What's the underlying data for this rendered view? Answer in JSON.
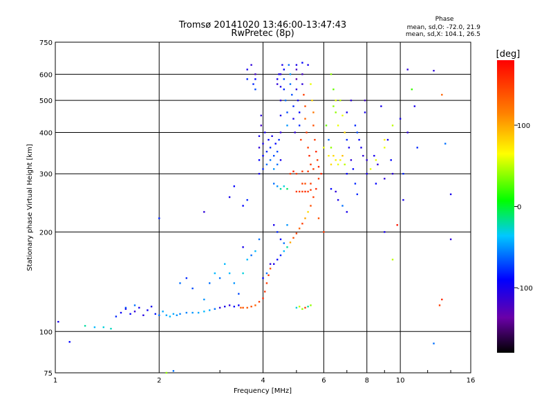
{
  "header": {
    "title_line1": "Tromsø 20141020 13:46:00-13:47:43",
    "title_line2": "RwPretec (8p)"
  },
  "phase_info": {
    "heading": "Phase",
    "line_o": "mean, sd,O: -72.0, 21.9",
    "line_x": "mean, sd,X: 104.1, 26.5"
  },
  "colorbar": {
    "label": "[deg]",
    "ticks": [
      {
        "value": 100,
        "label": "100"
      },
      {
        "value": 0,
        "label": "0"
      },
      {
        "value": -100,
        "label": "-100"
      }
    ],
    "range": [
      -180,
      180
    ],
    "colormap": "rainbow",
    "colors": [
      "#000000",
      "#8000b0",
      "#0000ff",
      "#00ffff",
      "#00ff00",
      "#ffff00",
      "#ff8000",
      "#ff0000"
    ]
  },
  "chart_data": {
    "type": "scatter",
    "xlabel": "Frequency [MHz]",
    "ylabel": "Stationary phase Virtual Height [km]",
    "xscale": "log",
    "yscale": "log",
    "xlim": [
      1,
      16
    ],
    "ylim": [
      75,
      750
    ],
    "grid": true,
    "xticks": [
      {
        "value": 1,
        "label": "1"
      },
      {
        "value": 2,
        "label": "2"
      },
      {
        "value": 4,
        "label": "4"
      },
      {
        "value": 6,
        "label": "6"
      },
      {
        "value": 8,
        "label": "8"
      },
      {
        "value": 10,
        "label": "10"
      },
      {
        "value": 16,
        "label": "16"
      }
    ],
    "yticks": [
      {
        "value": 75,
        "label": "75"
      },
      {
        "value": 100,
        "label": "100"
      },
      {
        "value": 200,
        "label": "200"
      },
      {
        "value": 300,
        "label": "300"
      },
      {
        "value": 400,
        "label": "400"
      },
      {
        "value": 500,
        "label": "500"
      },
      {
        "value": 600,
        "label": "600"
      },
      {
        "value": 750,
        "label": "750"
      }
    ],
    "points": [
      [
        1.02,
        107,
        -100
      ],
      [
        1.1,
        93,
        -90
      ],
      [
        1.22,
        104,
        -20
      ],
      [
        1.3,
        103,
        -40
      ],
      [
        1.38,
        103,
        -30
      ],
      [
        1.45,
        102,
        -25
      ],
      [
        1.5,
        111,
        -80
      ],
      [
        1.55,
        114,
        -95
      ],
      [
        1.6,
        117,
        -100
      ],
      [
        1.65,
        113,
        -90
      ],
      [
        1.7,
        115,
        -110
      ],
      [
        1.75,
        118,
        -100
      ],
      [
        1.8,
        112,
        -105
      ],
      [
        1.85,
        116,
        -95
      ],
      [
        1.9,
        119,
        -100
      ],
      [
        1.95,
        113,
        -85
      ],
      [
        2.0,
        112,
        -60
      ],
      [
        2.05,
        115,
        -45
      ],
      [
        2.1,
        112,
        -45
      ],
      [
        2.15,
        111,
        -40
      ],
      [
        2.2,
        113,
        -45
      ],
      [
        2.25,
        112,
        -50
      ],
      [
        2.3,
        113,
        -55
      ],
      [
        2.4,
        114,
        -55
      ],
      [
        2.5,
        114,
        -50
      ],
      [
        2.6,
        114,
        -45
      ],
      [
        2.7,
        115,
        -40
      ],
      [
        2.8,
        116,
        -45
      ],
      [
        2.9,
        117,
        -60
      ],
      [
        3.0,
        118,
        -110
      ],
      [
        3.1,
        119,
        -100
      ],
      [
        3.2,
        120,
        -110
      ],
      [
        3.3,
        119,
        -90
      ],
      [
        3.4,
        120,
        -95
      ],
      [
        3.45,
        118,
        130
      ],
      [
        3.5,
        118,
        140
      ],
      [
        3.6,
        118,
        135
      ],
      [
        3.7,
        119,
        140
      ],
      [
        3.8,
        120,
        130
      ],
      [
        3.9,
        123,
        150
      ],
      [
        4.0,
        126,
        160
      ],
      [
        4.05,
        132,
        155
      ],
      [
        4.1,
        140,
        150
      ],
      [
        4.15,
        148,
        150
      ],
      [
        4.2,
        155,
        140
      ],
      [
        4.3,
        160,
        -100
      ],
      [
        4.4,
        165,
        -90
      ],
      [
        4.5,
        170,
        -80
      ],
      [
        4.6,
        175,
        -40
      ],
      [
        4.7,
        180,
        -20
      ],
      [
        4.8,
        186,
        100
      ],
      [
        4.9,
        192,
        140
      ],
      [
        5.0,
        198,
        150
      ],
      [
        5.1,
        205,
        130
      ],
      [
        5.2,
        212,
        150
      ],
      [
        5.3,
        220,
        100
      ],
      [
        5.4,
        230,
        80
      ],
      [
        5.5,
        240,
        140
      ],
      [
        5.6,
        255,
        150
      ],
      [
        5.7,
        270,
        160
      ],
      [
        5.8,
        290,
        150
      ],
      [
        5.9,
        300,
        160
      ],
      [
        5.0,
        265,
        150
      ],
      [
        5.1,
        265,
        150
      ],
      [
        5.2,
        265,
        150
      ],
      [
        5.3,
        265,
        160
      ],
      [
        5.4,
        265,
        150
      ],
      [
        5.5,
        268,
        150
      ],
      [
        5.5,
        280,
        150
      ],
      [
        5.3,
        280,
        140
      ],
      [
        5.2,
        280,
        150
      ],
      [
        4.8,
        300,
        150
      ],
      [
        4.9,
        305,
        160
      ],
      [
        5.0,
        300,
        150
      ],
      [
        5.2,
        305,
        150
      ],
      [
        5.4,
        305,
        150
      ],
      [
        5.6,
        310,
        150
      ],
      [
        4.5,
        270,
        -20
      ],
      [
        4.6,
        275,
        -30
      ],
      [
        4.7,
        270,
        -10
      ],
      [
        4.4,
        275,
        -50
      ],
      [
        4.3,
        280,
        -60
      ],
      [
        3.9,
        300,
        -100
      ],
      [
        3.9,
        330,
        -90
      ],
      [
        3.9,
        360,
        -110
      ],
      [
        3.9,
        390,
        -100
      ],
      [
        3.95,
        420,
        -120
      ],
      [
        3.95,
        450,
        -110
      ],
      [
        4.0,
        310,
        -80
      ],
      [
        4.0,
        340,
        -90
      ],
      [
        4.0,
        370,
        -100
      ],
      [
        4.05,
        400,
        -100
      ],
      [
        4.1,
        320,
        -60
      ],
      [
        4.1,
        350,
        -80
      ],
      [
        4.15,
        380,
        -90
      ],
      [
        4.2,
        330,
        -60
      ],
      [
        4.2,
        360,
        -80
      ],
      [
        4.25,
        390,
        -100
      ],
      [
        4.3,
        310,
        -50
      ],
      [
        4.3,
        340,
        -70
      ],
      [
        4.35,
        370,
        -90
      ],
      [
        4.4,
        320,
        -60
      ],
      [
        4.4,
        350,
        -70
      ],
      [
        4.45,
        380,
        -80
      ],
      [
        4.5,
        330,
        -100
      ],
      [
        4.5,
        400,
        -110
      ],
      [
        4.5,
        450,
        -100
      ],
      [
        4.5,
        500,
        -110
      ],
      [
        4.5,
        550,
        -100
      ],
      [
        4.5,
        600,
        -110
      ],
      [
        4.55,
        640,
        -100
      ],
      [
        4.6,
        620,
        -90
      ],
      [
        4.6,
        580,
        -70
      ],
      [
        4.6,
        540,
        -80
      ],
      [
        4.65,
        500,
        -60
      ],
      [
        4.7,
        460,
        -70
      ],
      [
        4.7,
        420,
        -50
      ],
      [
        4.75,
        640,
        -60
      ],
      [
        4.8,
        600,
        -50
      ],
      [
        4.8,
        560,
        -60
      ],
      [
        4.85,
        520,
        -70
      ],
      [
        4.9,
        480,
        -80
      ],
      [
        4.9,
        440,
        -100
      ],
      [
        4.95,
        400,
        -110
      ],
      [
        5.0,
        620,
        -120
      ],
      [
        5.0,
        580,
        -130
      ],
      [
        5.0,
        540,
        -110
      ],
      [
        5.05,
        500,
        -100
      ],
      [
        5.1,
        460,
        -90
      ],
      [
        5.1,
        420,
        -80
      ],
      [
        5.15,
        380,
        150
      ],
      [
        5.2,
        600,
        -120
      ],
      [
        5.2,
        560,
        -110
      ],
      [
        5.25,
        520,
        150
      ],
      [
        5.3,
        480,
        140
      ],
      [
        5.3,
        440,
        130
      ],
      [
        5.35,
        400,
        150
      ],
      [
        5.4,
        360,
        150
      ],
      [
        5.45,
        340,
        160
      ],
      [
        5.5,
        320,
        150
      ],
      [
        5.5,
        560,
        60
      ],
      [
        5.55,
        500,
        80
      ],
      [
        5.6,
        460,
        120
      ],
      [
        5.6,
        420,
        140
      ],
      [
        5.65,
        380,
        150
      ],
      [
        5.7,
        350,
        160
      ],
      [
        5.75,
        330,
        150
      ],
      [
        5.8,
        315,
        160
      ],
      [
        5.4,
        640,
        -100
      ],
      [
        5.2,
        650,
        -90
      ],
      [
        5.0,
        640,
        -100
      ],
      [
        4.4,
        560,
        -110
      ],
      [
        4.4,
        580,
        -100
      ],
      [
        4.45,
        600,
        -100
      ],
      [
        3.7,
        640,
        -110
      ],
      [
        3.8,
        600,
        -120
      ],
      [
        3.8,
        580,
        -90
      ],
      [
        3.75,
        560,
        -80
      ],
      [
        3.8,
        540,
        -70
      ],
      [
        3.6,
        580,
        -80
      ],
      [
        3.6,
        620,
        -100
      ],
      [
        6.2,
        380,
        -60
      ],
      [
        6.3,
        360,
        40
      ],
      [
        6.4,
        340,
        80
      ],
      [
        6.5,
        330,
        70
      ],
      [
        6.6,
        320,
        60
      ],
      [
        6.7,
        330,
        70
      ],
      [
        6.8,
        340,
        90
      ],
      [
        6.9,
        320,
        50
      ],
      [
        6.5,
        460,
        40
      ],
      [
        6.6,
        420,
        60
      ],
      [
        6.4,
        480,
        40
      ],
      [
        6.7,
        500,
        50
      ],
      [
        6.8,
        450,
        60
      ],
      [
        6.9,
        400,
        80
      ],
      [
        7.0,
        380,
        -80
      ],
      [
        7.1,
        360,
        -100
      ],
      [
        7.2,
        330,
        -110
      ],
      [
        7.3,
        310,
        -90
      ],
      [
        7.0,
        460,
        -100
      ],
      [
        7.2,
        500,
        -110
      ],
      [
        7.4,
        420,
        -80
      ],
      [
        7.5,
        400,
        -70
      ],
      [
        7.6,
        380,
        -90
      ],
      [
        7.7,
        360,
        -100
      ],
      [
        7.8,
        340,
        -110
      ],
      [
        7.9,
        460,
        -100
      ],
      [
        7.9,
        500,
        -120
      ],
      [
        8.0,
        330,
        -110
      ],
      [
        8.2,
        310,
        60
      ],
      [
        8.4,
        340,
        -100
      ],
      [
        8.6,
        320,
        -110
      ],
      [
        8.8,
        480,
        -100
      ],
      [
        9.0,
        360,
        60
      ],
      [
        9.2,
        380,
        -100
      ],
      [
        9.4,
        330,
        -90
      ],
      [
        6.5,
        500,
        60
      ],
      [
        6.3,
        600,
        40
      ],
      [
        6.4,
        540,
        30
      ],
      [
        6.1,
        420,
        30
      ],
      [
        6.2,
        340,
        70
      ],
      [
        6.3,
        320,
        80
      ],
      [
        6.0,
        360,
        60
      ],
      [
        6.6,
        250,
        -100
      ],
      [
        6.8,
        240,
        -60
      ],
      [
        7.0,
        230,
        -100
      ],
      [
        7.5,
        260,
        -80
      ],
      [
        6.3,
        270,
        -90
      ],
      [
        6.5,
        265,
        -110
      ],
      [
        7.0,
        300,
        -90
      ],
      [
        7.4,
        280,
        -80
      ],
      [
        8.0,
        300,
        -100
      ],
      [
        8.5,
        280,
        -90
      ],
      [
        9.0,
        290,
        -110
      ],
      [
        9.5,
        300,
        -110
      ],
      [
        9.0,
        380,
        70
      ],
      [
        9.5,
        420,
        50
      ],
      [
        10.0,
        440,
        -100
      ],
      [
        10.5,
        620,
        -110
      ],
      [
        10.8,
        540,
        20
      ],
      [
        11.0,
        480,
        -100
      ],
      [
        11.2,
        360,
        -80
      ],
      [
        12.5,
        615,
        -110
      ],
      [
        13.2,
        520,
        130
      ],
      [
        13.5,
        370,
        -60
      ],
      [
        14.0,
        260,
        -100
      ],
      [
        14.0,
        190,
        -110
      ],
      [
        13.0,
        120,
        150
      ],
      [
        13.2,
        125,
        160
      ],
      [
        12.5,
        92,
        -60
      ],
      [
        10.5,
        400,
        -110
      ],
      [
        10.2,
        250,
        -100
      ],
      [
        9.8,
        210,
        170
      ],
      [
        9.5,
        165,
        50
      ],
      [
        10.2,
        300,
        -80
      ],
      [
        9.0,
        200,
        -100
      ],
      [
        8.5,
        330,
        60
      ],
      [
        6.0,
        200,
        150
      ],
      [
        5.8,
        220,
        140
      ],
      [
        5.0,
        118,
        -30
      ],
      [
        5.1,
        119,
        50
      ],
      [
        5.2,
        117,
        40
      ],
      [
        5.3,
        118,
        150
      ],
      [
        5.4,
        119,
        -20
      ],
      [
        5.5,
        120,
        40
      ],
      [
        2.0,
        220,
        -80
      ],
      [
        2.7,
        230,
        -110
      ],
      [
        3.2,
        255,
        -100
      ],
      [
        3.5,
        240,
        -90
      ],
      [
        3.6,
        250,
        -80
      ],
      [
        3.3,
        275,
        -90
      ],
      [
        2.1,
        75,
        40
      ],
      [
        2.2,
        76,
        -60
      ],
      [
        1.6,
        118,
        -70
      ],
      [
        1.7,
        120,
        -60
      ],
      [
        3.4,
        130,
        -70
      ],
      [
        3.3,
        140,
        -50
      ],
      [
        3.2,
        150,
        -40
      ],
      [
        3.0,
        145,
        -60
      ],
      [
        3.1,
        160,
        -40
      ],
      [
        3.5,
        150,
        -30
      ],
      [
        3.6,
        165,
        -40
      ],
      [
        3.7,
        170,
        -60
      ],
      [
        3.5,
        180,
        -100
      ],
      [
        3.8,
        175,
        -40
      ],
      [
        3.9,
        190,
        -60
      ],
      [
        2.5,
        135,
        -70
      ],
      [
        2.8,
        140,
        -60
      ],
      [
        2.9,
        150,
        -40
      ],
      [
        2.7,
        125,
        -50
      ],
      [
        2.3,
        140,
        -60
      ],
      [
        2.4,
        145,
        -80
      ],
      [
        4.4,
        200,
        -80
      ],
      [
        4.5,
        190,
        -90
      ],
      [
        4.6,
        185,
        -60
      ],
      [
        4.7,
        210,
        -50
      ],
      [
        4.3,
        210,
        -100
      ],
      [
        4.2,
        160,
        -110
      ],
      [
        4.1,
        150,
        -60
      ],
      [
        4.0,
        145,
        -90
      ]
    ]
  }
}
